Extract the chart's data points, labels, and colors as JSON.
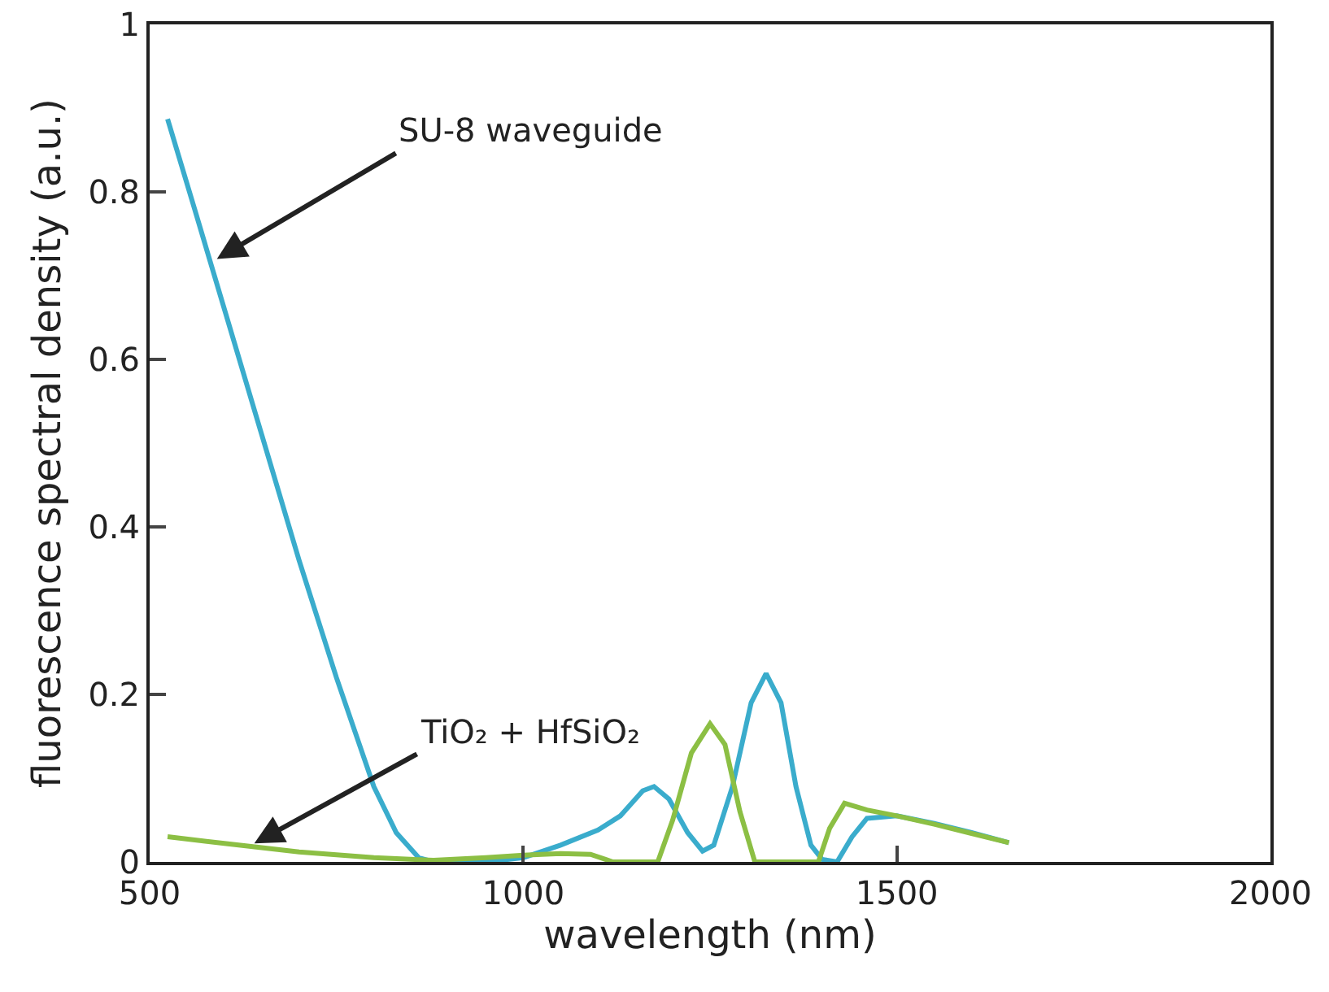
{
  "chart_data": {
    "type": "line",
    "xlabel": "wavelength (nm)",
    "ylabel": "fluorescence spectral density (a.u.)",
    "xlim": [
      500,
      2000
    ],
    "xticks": [
      500,
      1000,
      1500,
      2000
    ],
    "ylim": [
      0,
      1
    ],
    "yticks": [
      0,
      0.2,
      0.4,
      0.6,
      0.8,
      1
    ],
    "grid": false,
    "marker": "none",
    "line_style": "solid",
    "series": [
      {
        "color": "#3aaccc",
        "x": [
          524,
          560,
          600,
          650,
          700,
          750,
          800,
          830,
          860,
          880,
          950,
          1000,
          1050,
          1100,
          1130,
          1160,
          1175,
          1195,
          1220,
          1240,
          1255,
          1280,
          1305,
          1325,
          1345,
          1365,
          1385,
          1400,
          1420,
          1440,
          1460,
          1500,
          1550,
          1600,
          1650
        ],
        "values": [
          0.887,
          0.78,
          0.66,
          0.51,
          0.36,
          0.22,
          0.09,
          0.035,
          0.005,
          0,
          0,
          0.005,
          0.02,
          0.038,
          0.055,
          0.085,
          0.09,
          0.075,
          0.035,
          0.013,
          0.02,
          0.09,
          0.19,
          0.225,
          0.19,
          0.09,
          0.02,
          0.003,
          0,
          0.03,
          0.052,
          0.055,
          0.046,
          0.035,
          0.023
        ]
      },
      {
        "color": "#8cbf44",
        "x": [
          524,
          600,
          700,
          800,
          880,
          950,
          1000,
          1050,
          1090,
          1110,
          1120,
          1180,
          1200,
          1225,
          1250,
          1270,
          1290,
          1310,
          1395,
          1410,
          1430,
          1460,
          1500,
          1550,
          1600,
          1650
        ],
        "values": [
          0.03,
          0.022,
          0.012,
          0.005,
          0.002,
          0.005,
          0.008,
          0.01,
          0.009,
          0.003,
          0,
          0,
          0.05,
          0.13,
          0.165,
          0.14,
          0.06,
          0,
          0,
          0.04,
          0.07,
          0.062,
          0.055,
          0.045,
          0.034,
          0.023
        ]
      }
    ],
    "annotations": [
      {
        "text": "SU-8 waveguide",
        "x": 590,
        "y": 0.72
      },
      {
        "text": "TiO₂ + HfSiO₂",
        "x": 640,
        "y": 0.022
      }
    ]
  }
}
